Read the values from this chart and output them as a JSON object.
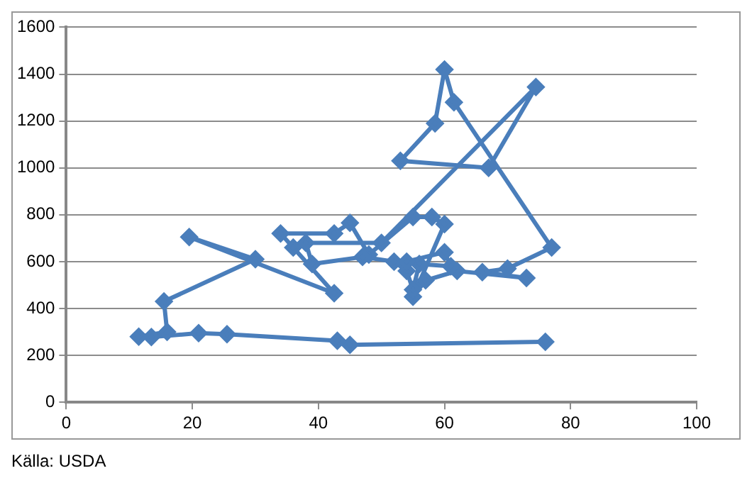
{
  "chart_data": {
    "type": "line",
    "annotations": [
      "Källa: USDA"
    ],
    "x": [
      76,
      45,
      43,
      25.5,
      21,
      13.5,
      11.5,
      16,
      15.5,
      30,
      19.5,
      42.5,
      36,
      34,
      42.5,
      45,
      48,
      55,
      58,
      60,
      55,
      57,
      62,
      73,
      66,
      70,
      77,
      61.5,
      60,
      58.5,
      53,
      67,
      74.5,
      50,
      38,
      39,
      47,
      52,
      54,
      55,
      56,
      61,
      60,
      54
    ],
    "series": [
      {
        "color": "#4a7ebb",
        "values": [
          258,
          245,
          262,
          290,
          295,
          278,
          280,
          300,
          430,
          610,
          705,
          465,
          660,
          720,
          720,
          765,
          630,
          790,
          790,
          760,
          450,
          520,
          560,
          530,
          555,
          570,
          660,
          1280,
          1420,
          1190,
          1030,
          1000,
          1345,
          680,
          680,
          590,
          620,
          600,
          560,
          480,
          590,
          580,
          640,
          600
        ]
      }
    ],
    "xlim": [
      0,
      100
    ],
    "xticks": [
      0,
      20,
      40,
      60,
      80,
      100
    ],
    "ylim": [
      0,
      1600
    ],
    "yticks": [
      0,
      200,
      400,
      600,
      800,
      1000,
      1200,
      1400,
      1600
    ],
    "grid": "y",
    "marker": "diamond",
    "line_style": "solid"
  }
}
